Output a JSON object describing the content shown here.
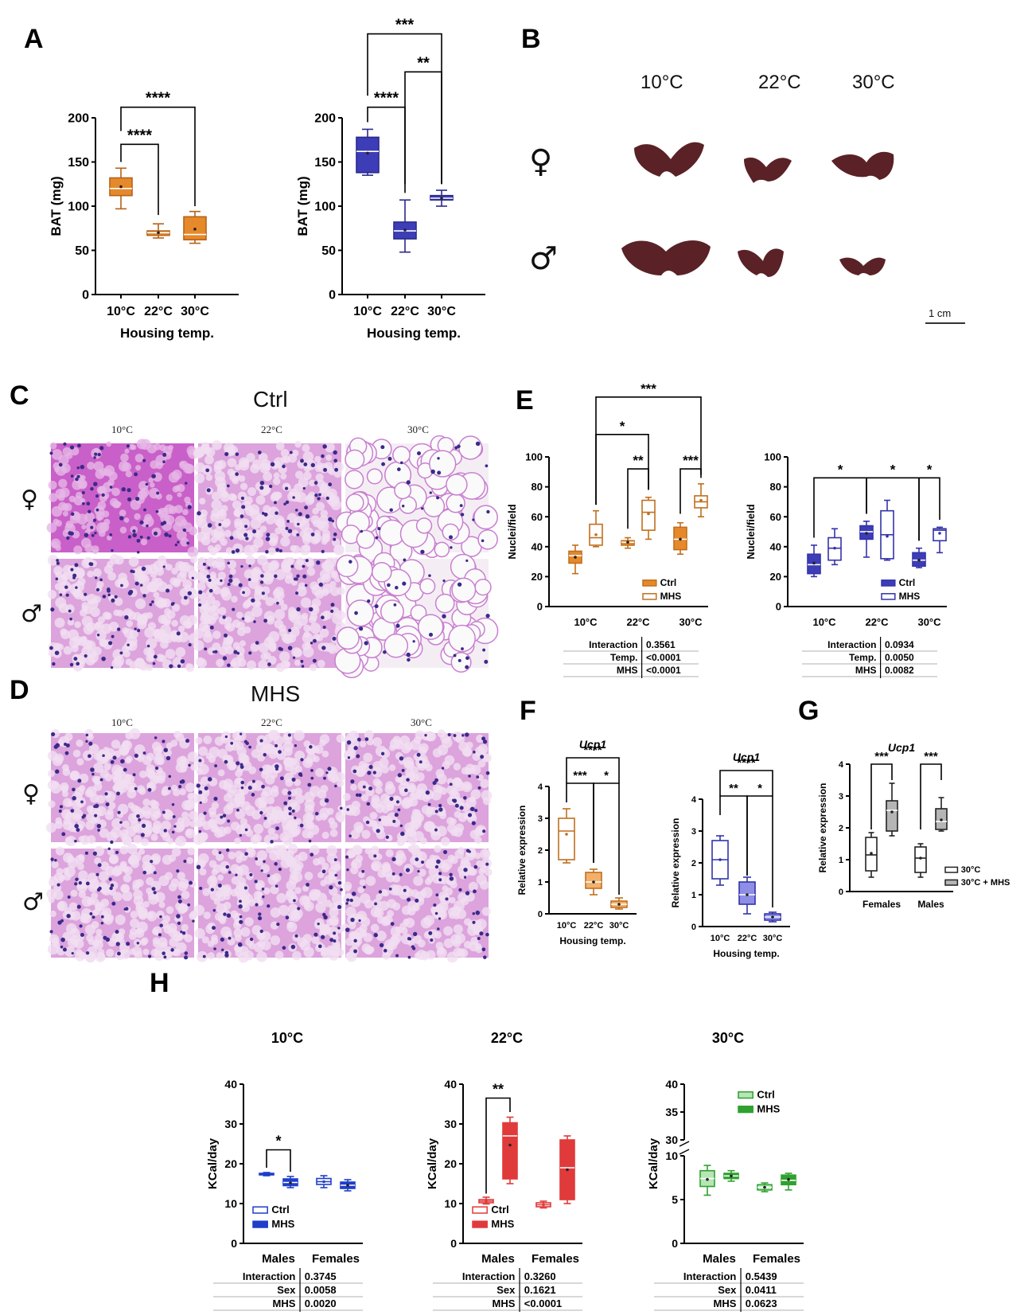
{
  "panels": {
    "A": "A",
    "B": "B",
    "C": "C",
    "D": "D",
    "E": "E",
    "F": "F",
    "G": "G",
    "H": "H"
  },
  "colors": {
    "orange": "#e6892a",
    "orange_light": "#f3b06b",
    "blue": "#3d3db8",
    "blue_light": "#8e8ee6",
    "red": "#e03a3a",
    "green": "#2ea12e",
    "gray": "#b5b5b5",
    "pink_bg": "#d37bd6"
  },
  "panel_B": {
    "temps": [
      "10°C",
      "22°C",
      "30°C"
    ],
    "female_symbol": "♀",
    "male_symbol": "♂",
    "scale_bar": "1 cm"
  },
  "panel_C": {
    "title": "Ctrl",
    "cols": [
      "10°C",
      "22°C",
      "30°C"
    ],
    "female": "♀",
    "male": "♂"
  },
  "panel_D": {
    "title": "MHS",
    "cols": [
      "10°C",
      "22°C",
      "30°C"
    ],
    "female": "♀",
    "male": "♂"
  },
  "chart_data": [
    {
      "id": "A1",
      "type": "box",
      "ylabel": "BAT (mg)",
      "xlabel": "Housing temp.",
      "ylim": [
        0,
        200
      ],
      "yticks": [
        "0",
        "50",
        "100",
        "150",
        "200"
      ],
      "categories": [
        "10°C",
        "22°C",
        "30°C"
      ],
      "boxes": [
        {
          "min": 97,
          "q1": 112,
          "median": 120,
          "q3": 132,
          "max": 143,
          "mean": 122
        },
        {
          "min": 64,
          "q1": 67,
          "median": 70,
          "q3": 72,
          "max": 80,
          "mean": 70
        },
        {
          "min": 58,
          "q1": 62,
          "median": 68,
          "q3": 88,
          "max": 94,
          "mean": 74
        }
      ],
      "sig": [
        {
          "a": 0,
          "b": 1,
          "label": "****"
        },
        {
          "a": 0,
          "b": 2,
          "label": "****"
        }
      ],
      "color": "#e6892a"
    },
    {
      "id": "A2",
      "type": "box",
      "ylabel": "BAT (mg)",
      "xlabel": "Housing temp.",
      "ylim": [
        0,
        200
      ],
      "yticks": [
        "0",
        "50",
        "100",
        "150",
        "200"
      ],
      "categories": [
        "10°C",
        "22°C",
        "30°C"
      ],
      "boxes": [
        {
          "min": 135,
          "q1": 138,
          "median": 162,
          "q3": 178,
          "max": 187,
          "mean": 160
        },
        {
          "min": 48,
          "q1": 63,
          "median": 72,
          "q3": 82,
          "max": 107,
          "mean": 73
        },
        {
          "min": 100,
          "q1": 107,
          "median": 109,
          "q3": 112,
          "max": 118,
          "mean": 109
        }
      ],
      "sig": [
        {
          "a": 0,
          "b": 1,
          "label": "****"
        },
        {
          "a": 1,
          "b": 2,
          "label": "**"
        },
        {
          "a": 0,
          "b": 2,
          "label": "***"
        }
      ],
      "color": "#3d3db8"
    },
    {
      "id": "E1",
      "type": "box",
      "ylabel": "Nuclei/field",
      "ylim": [
        0,
        100
      ],
      "yticks": [
        "0",
        "20",
        "40",
        "60",
        "80",
        "100"
      ],
      "categories": [
        "10°C",
        "22°C",
        "30°C"
      ],
      "series": [
        {
          "name": "Ctrl",
          "boxes": [
            {
              "min": 22,
              "q1": 29,
              "median": 34,
              "q3": 37,
              "max": 41,
              "mean": 33
            },
            {
              "min": 39,
              "q1": 41,
              "median": 43,
              "q3": 44,
              "max": 46,
              "mean": 43
            },
            {
              "min": 35,
              "q1": 38,
              "median": 45,
              "q3": 53,
              "max": 56,
              "mean": 45
            }
          ]
        },
        {
          "name": "MHS",
          "boxes": [
            {
              "min": 40,
              "q1": 41,
              "median": 46,
              "q3": 55,
              "max": 64,
              "mean": 48
            },
            {
              "min": 45,
              "q1": 51,
              "median": 63,
              "q3": 71,
              "max": 73,
              "mean": 62
            },
            {
              "min": 60,
              "q1": 66,
              "median": 70,
              "q3": 74,
              "max": 82,
              "mean": 71
            }
          ]
        }
      ],
      "sig": [
        {
          "label": "***",
          "from": "10°C MHS",
          "to": "30°C MHS"
        },
        {
          "label": "*",
          "from": "10°C MHS",
          "to": "22°C MHS"
        },
        {
          "label": "**",
          "from": "22°C Ctrl",
          "to": "22°C MHS"
        },
        {
          "label": "***",
          "from": "30°C Ctrl",
          "to": "30°C MHS"
        }
      ],
      "legend": [
        "Ctrl",
        "MHS"
      ],
      "stats": [
        {
          "label": "Interaction",
          "value": "0.3561"
        },
        {
          "label": "Temp.",
          "value": "<0.0001"
        },
        {
          "label": "MHS",
          "value": "<0.0001"
        }
      ],
      "color": "#e6892a"
    },
    {
      "id": "E2",
      "type": "box",
      "ylabel": "Nuclei/field",
      "ylim": [
        0,
        100
      ],
      "yticks": [
        "0",
        "20",
        "40",
        "60",
        "80",
        "100"
      ],
      "categories": [
        "10°C",
        "22°C",
        "30°C"
      ],
      "series": [
        {
          "name": "Ctrl",
          "boxes": [
            {
              "min": 20,
              "q1": 22,
              "median": 28,
              "q3": 35,
              "max": 41,
              "mean": 29
            },
            {
              "min": 33,
              "q1": 45,
              "median": 50,
              "q3": 54,
              "max": 57,
              "mean": 49
            },
            {
              "min": 26,
              "q1": 27,
              "median": 31,
              "q3": 36,
              "max": 39,
              "mean": 31
            }
          ]
        },
        {
          "name": "MHS",
          "boxes": [
            {
              "min": 28,
              "q1": 31,
              "median": 39,
              "q3": 46,
              "max": 52,
              "mean": 39
            },
            {
              "min": 31,
              "q1": 32,
              "median": 48,
              "q3": 64,
              "max": 71,
              "mean": 47
            },
            {
              "min": 36,
              "q1": 44,
              "median": 51,
              "q3": 52,
              "max": 53,
              "mean": 49
            }
          ]
        }
      ],
      "sig": [
        {
          "label": "*",
          "from": "10°C Ctrl",
          "to": "22°C Ctrl"
        },
        {
          "label": "*",
          "from": "22°C Ctrl",
          "to": "30°C Ctrl"
        },
        {
          "label": "*",
          "from": "30°C Ctrl",
          "to": "30°C MHS"
        }
      ],
      "legend": [
        "Ctrl",
        "MHS"
      ],
      "stats": [
        {
          "label": "Interaction",
          "value": "0.0934"
        },
        {
          "label": "Temp.",
          "value": "0.0050"
        },
        {
          "label": "MHS",
          "value": "0.0082"
        }
      ],
      "color": "#3d3db8"
    },
    {
      "id": "F1",
      "type": "box",
      "title": "Ucp1",
      "ylabel": "Relative expression",
      "xlabel": "Housing temp.",
      "ylim": [
        0,
        4
      ],
      "yticks": [
        "0",
        "1",
        "2",
        "3",
        "4"
      ],
      "categories": [
        "10°C",
        "22°C",
        "30°C"
      ],
      "boxes": [
        {
          "min": 1.6,
          "q1": 1.7,
          "median": 2.6,
          "q3": 3.0,
          "max": 3.3,
          "mean": 2.5
        },
        {
          "min": 0.6,
          "q1": 0.8,
          "median": 1.0,
          "q3": 1.3,
          "max": 1.4,
          "mean": 1.0
        },
        {
          "min": 0.15,
          "q1": 0.2,
          "median": 0.3,
          "q3": 0.4,
          "max": 0.5,
          "mean": 0.3
        }
      ],
      "sig": [
        {
          "a": 0,
          "b": 1,
          "label": "***"
        },
        {
          "a": 1,
          "b": 2,
          "label": "*"
        },
        {
          "a": 0,
          "b": 2,
          "label": "****"
        }
      ],
      "color": "#e6892a"
    },
    {
      "id": "F2",
      "type": "box",
      "title": "Ucp1",
      "ylabel": "Relative expression",
      "xlabel": "Housing temp.",
      "ylim": [
        0,
        4
      ],
      "yticks": [
        "0",
        "1",
        "2",
        "3",
        "4"
      ],
      "categories": [
        "10°C",
        "22°C",
        "30°C"
      ],
      "boxes": [
        {
          "min": 1.3,
          "q1": 1.5,
          "median": 2.1,
          "q3": 2.7,
          "max": 2.85,
          "mean": 2.1
        },
        {
          "min": 0.4,
          "q1": 0.7,
          "median": 1.0,
          "q3": 1.4,
          "max": 1.55,
          "mean": 1.0
        },
        {
          "min": 0.15,
          "q1": 0.2,
          "median": 0.3,
          "q3": 0.4,
          "max": 0.45,
          "mean": 0.3
        }
      ],
      "sig": [
        {
          "a": 0,
          "b": 1,
          "label": "**"
        },
        {
          "a": 1,
          "b": 2,
          "label": "*"
        },
        {
          "a": 0,
          "b": 2,
          "label": "****"
        }
      ],
      "color": "#3d3db8"
    },
    {
      "id": "G",
      "type": "box",
      "title": "Ucp1",
      "ylabel": "Relative expression",
      "ylim": [
        0,
        4
      ],
      "yticks": [
        "0",
        "1",
        "2",
        "3",
        "4"
      ],
      "categories": [
        "Females",
        "Males"
      ],
      "series": [
        {
          "name": "30°C",
          "boxes": [
            {
              "min": 0.45,
              "q1": 0.65,
              "median": 1.15,
              "q3": 1.7,
              "max": 1.85,
              "mean": 1.2
            },
            {
              "min": 0.45,
              "q1": 0.6,
              "median": 1.05,
              "q3": 1.4,
              "max": 1.5,
              "mean": 1.05
            }
          ]
        },
        {
          "name": "30°C + MHS",
          "boxes": [
            {
              "min": 1.75,
              "q1": 1.9,
              "median": 2.55,
              "q3": 2.85,
              "max": 3.4,
              "mean": 2.5
            },
            {
              "min": 1.9,
              "q1": 1.95,
              "median": 2.2,
              "q3": 2.6,
              "max": 2.95,
              "mean": 2.25
            }
          ]
        }
      ],
      "sig": [
        {
          "label": "***",
          "cat": 0
        },
        {
          "label": "***",
          "cat": 1
        }
      ],
      "legend": [
        "30°C",
        "30°C + MHS"
      ],
      "color": "#222222",
      "fill2": "#b5b5b5"
    },
    {
      "id": "H1",
      "type": "box",
      "title": "10°C",
      "ylabel": "KCal/day",
      "ylim": [
        0,
        40
      ],
      "yticks": [
        "0",
        "10",
        "20",
        "30",
        "40"
      ],
      "categories": [
        "Males",
        "Females"
      ],
      "series": [
        {
          "name": "Ctrl",
          "boxes": [
            {
              "min": 17.0,
              "q1": 17.2,
              "median": 17.4,
              "q3": 17.6,
              "max": 17.8,
              "mean": 17.4
            },
            {
              "min": 14.0,
              "q1": 14.8,
              "median": 15.5,
              "q3": 16.3,
              "max": 17.0,
              "mean": 15.5
            }
          ]
        },
        {
          "name": "MHS",
          "boxes": [
            {
              "min": 14.0,
              "q1": 14.5,
              "median": 15.3,
              "q3": 16.2,
              "max": 16.8,
              "mean": 15.2
            },
            {
              "min": 13.2,
              "q1": 13.8,
              "median": 14.6,
              "q3": 15.4,
              "max": 16.0,
              "mean": 14.6
            }
          ]
        }
      ],
      "sig": [
        {
          "label": "*",
          "cat": 0
        }
      ],
      "legend": [
        "Ctrl",
        "MHS"
      ],
      "stats": [
        {
          "label": "Interaction",
          "value": "0.3745"
        },
        {
          "label": "Sex",
          "value": "0.0058"
        },
        {
          "label": "MHS",
          "value": "0.0020"
        }
      ],
      "color": "#1f3fc8"
    },
    {
      "id": "H2",
      "type": "box",
      "title": "22°C",
      "ylabel": "KCal/day",
      "ylim": [
        0,
        40
      ],
      "yticks": [
        "0",
        "10",
        "20",
        "30",
        "40"
      ],
      "categories": [
        "Males",
        "Females"
      ],
      "series": [
        {
          "name": "Ctrl",
          "boxes": [
            {
              "min": 9.9,
              "q1": 10.2,
              "median": 10.6,
              "q3": 11.0,
              "max": 11.6,
              "mean": 10.6
            },
            {
              "min": 8.9,
              "q1": 9.2,
              "median": 9.7,
              "q3": 10.2,
              "max": 10.6,
              "mean": 9.7
            }
          ]
        },
        {
          "name": "MHS",
          "boxes": [
            {
              "min": 15.0,
              "q1": 16.2,
              "median": 27.0,
              "q3": 30.3,
              "max": 31.7,
              "mean": 24.7
            },
            {
              "min": 10.0,
              "q1": 11.0,
              "median": 19.0,
              "q3": 26.0,
              "max": 27.0,
              "mean": 18.5
            }
          ]
        }
      ],
      "sig": [
        {
          "label": "**",
          "cat": 0
        }
      ],
      "legend": [
        "Ctrl",
        "MHS"
      ],
      "stats": [
        {
          "label": "Interaction",
          "value": "0.3260"
        },
        {
          "label": "Sex",
          "value": "0.1621"
        },
        {
          "label": "MHS",
          "value": "<0.0001"
        }
      ],
      "color": "#e03a3a"
    },
    {
      "id": "H3",
      "type": "box",
      "title": "30°C",
      "ylabel": "KCal/day",
      "ylim": [
        0,
        40
      ],
      "yticks": [
        "0",
        "5",
        "10",
        "30",
        "35",
        "40"
      ],
      "categories": [
        "Males",
        "Females"
      ],
      "axis_break": [
        10,
        30
      ],
      "series": [
        {
          "name": "Ctrl",
          "boxes": [
            {
              "min": 5.5,
              "q1": 6.5,
              "median": 7.4,
              "q3": 8.3,
              "max": 8.9,
              "mean": 7.3
            },
            {
              "min": 5.9,
              "q1": 6.1,
              "median": 6.4,
              "q3": 6.7,
              "max": 6.9,
              "mean": 6.4
            }
          ]
        },
        {
          "name": "MHS",
          "boxes": [
            {
              "min": 7.1,
              "q1": 7.4,
              "median": 7.7,
              "q3": 8.0,
              "max": 8.3,
              "mean": 7.7
            },
            {
              "min": 6.1,
              "q1": 6.7,
              "median": 7.2,
              "q3": 7.8,
              "max": 8.0,
              "mean": 7.3
            }
          ]
        }
      ],
      "legend": [
        "Ctrl",
        "MHS"
      ],
      "stats": [
        {
          "label": "Interaction",
          "value": "0.5439"
        },
        {
          "label": "Sex",
          "value": "0.0411"
        },
        {
          "label": "MHS",
          "value": "0.0623"
        }
      ],
      "color": "#2ea12e"
    }
  ]
}
